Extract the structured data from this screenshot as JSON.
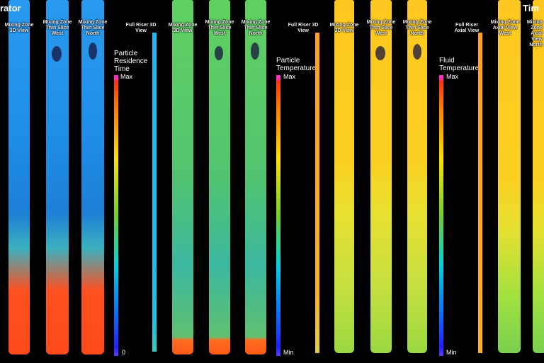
{
  "titles": {
    "left_partial": "rator",
    "right_partial": "Tim"
  },
  "groups": [
    {
      "name": "residence-time",
      "columns": [
        "Mixing Zone 3D View",
        "Mixing Zone Thin Slice West",
        "Mixing Zone Thin Slice North"
      ],
      "legend": {
        "title": "Particle Residence Time",
        "max": "Max",
        "min": "0"
      },
      "riser_label": "Full Riser 3D View"
    },
    {
      "name": "particle-temperature",
      "columns": [
        "Mixing Zone 3D View",
        "Mixing Zone Thin Slice West",
        "Mixing Zone Thin Slice North"
      ],
      "legend": {
        "title": "Particle Temperature",
        "max": "Max",
        "min": "Min"
      },
      "riser_label": "Full Riser 3D View"
    },
    {
      "name": "fluid-temperature",
      "columns": [
        "Mixing Zone 3D View",
        "Mixing Zone Thin Slice West",
        "Mixing Zone Thin Slice North"
      ],
      "legend": {
        "title": "Fluid Temperature",
        "max": "Max",
        "min": "Min"
      },
      "riser_label": "Full Riser Axial View"
    },
    {
      "name": "axial",
      "columns": [
        "Mixing Zone Axial View West",
        "Mixing Zone Axial View North"
      ]
    }
  ]
}
